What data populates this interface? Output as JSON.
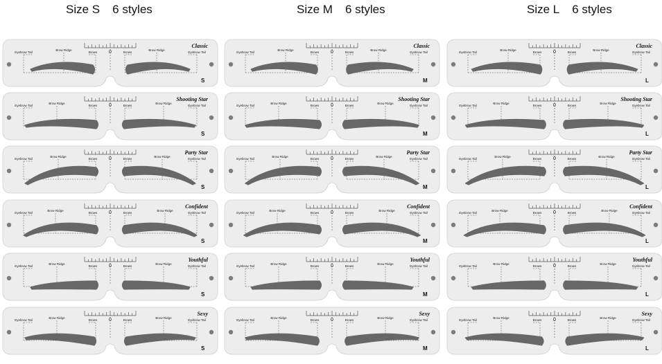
{
  "columns": [
    {
      "size_label": "Size S",
      "styles_label": "6 styles",
      "letter": "S"
    },
    {
      "size_label": "Size M",
      "styles_label": "6 styles",
      "letter": "M"
    },
    {
      "size_label": "Size L",
      "styles_label": "6 styles",
      "letter": "L"
    }
  ],
  "styles": [
    "Classic",
    "Shooting Star",
    "Party Star",
    "Confident",
    "Youthful",
    "Sexy"
  ],
  "ruler_zero": "0",
  "guide_labels": {
    "tail": "Eyebrow Tail",
    "ridge": "Brow Ridge",
    "brows": "Brows"
  },
  "colors": {
    "card": "#ededed",
    "card_border": "#d6d6d6",
    "brow": "#676767",
    "hole": "#7c7c7c",
    "guide": "#555555"
  }
}
